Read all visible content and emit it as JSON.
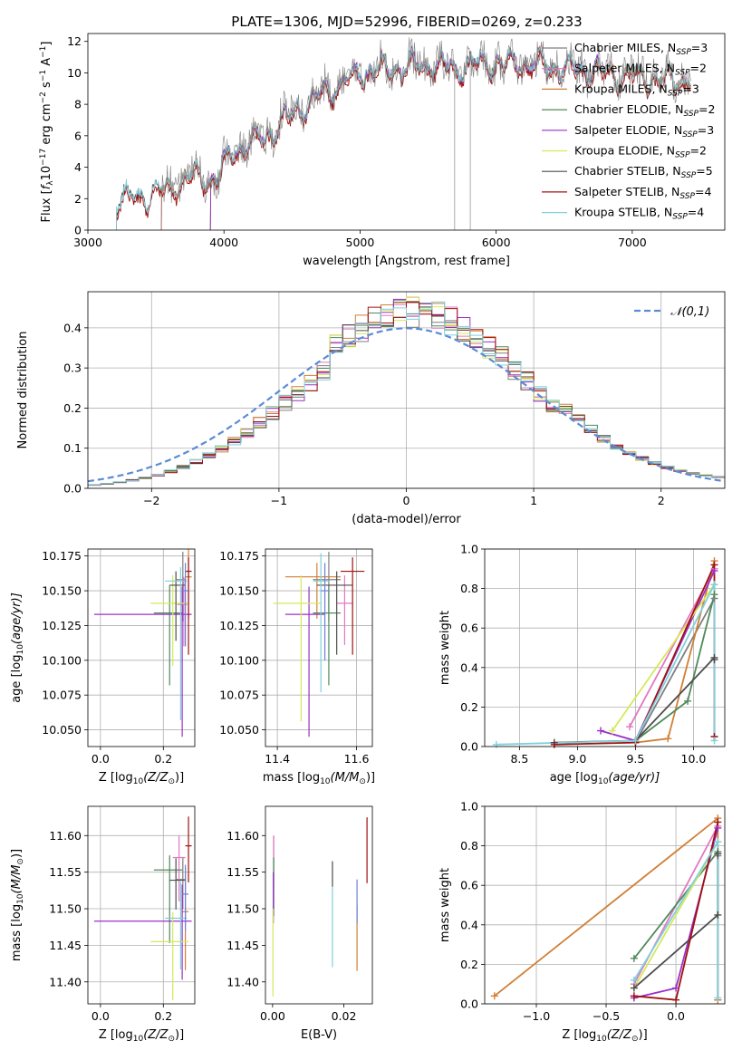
{
  "figure_title": "PLATE=1306, MJD=52996, FIBERID=0269, z=0.233",
  "colors": {
    "Chabrier MILES": "#7f7f7f",
    "Salpeter MILES": "#e377c2",
    "Kroupa MILES": "#d07f35",
    "Chabrier ELODIE": "#4f8a5b",
    "Salpeter ELODIE": "#9b30c8",
    "Kroupa ELODIE": "#d6e85a",
    "Chabrier STELIB": "#4d4d4d",
    "Salpeter STELIB": "#a01010",
    "Kroupa STELIB": "#7fd0dc",
    "normal": "#5b8bd6",
    "extra": "#6b7fd8"
  },
  "chart_data": [
    {
      "id": "spectrum",
      "type": "line",
      "title": "PLATE=1306, MJD=52996, FIBERID=0269, z=0.233",
      "xlabel": "wavelength [Angstrom, rest frame]",
      "ylabel_parts": [
        "Flux [",
        "f",
        "λ",
        "10",
        "−17",
        " erg cm",
        "−2",
        " s",
        "−1",
        " A",
        "−1",
        "]"
      ],
      "xlim": [
        3000,
        7680
      ],
      "ylim": [
        0,
        12.5
      ],
      "xticks": [
        3000,
        4000,
        5000,
        6000,
        7000
      ],
      "yticks": [
        0,
        2,
        4,
        6,
        8,
        10,
        12
      ],
      "grid": false,
      "legend_position": "right",
      "data_range": [
        3210,
        7430
      ],
      "continuum": [
        [
          3210,
          1.9
        ],
        [
          3500,
          2.4
        ],
        [
          3650,
          3.0
        ],
        [
          3800,
          3.6
        ],
        [
          3950,
          3.2
        ],
        [
          4050,
          5.0
        ],
        [
          4300,
          6.0
        ],
        [
          4500,
          7.5
        ],
        [
          4700,
          8.5
        ],
        [
          4900,
          9.6
        ],
        [
          5100,
          10.3
        ],
        [
          5300,
          10.3
        ],
        [
          5500,
          10.6
        ],
        [
          5700,
          10.4
        ],
        [
          5900,
          10.6
        ],
        [
          6100,
          10.7
        ],
        [
          6400,
          10.5
        ],
        [
          6700,
          10.2
        ],
        [
          7000,
          9.9
        ],
        [
          7200,
          9.7
        ],
        [
          7430,
          9.6
        ]
      ],
      "series": [
        {
          "name": "Chabrier MILES",
          "nssp": "3"
        },
        {
          "name": "Salpeter MILES",
          "nssp": "2"
        },
        {
          "name": "Kroupa MILES",
          "nssp": "3"
        },
        {
          "name": "Chabrier ELODIE",
          "nssp": "2"
        },
        {
          "name": "Salpeter ELODIE",
          "nssp": "3"
        },
        {
          "name": "Kroupa ELODIE",
          "nssp": "2"
        },
        {
          "name": "Chabrier STELIB",
          "nssp": "5"
        },
        {
          "name": "Salpeter STELIB",
          "nssp": "4"
        },
        {
          "name": "Kroupa STELIB",
          "nssp": "4"
        }
      ]
    },
    {
      "id": "residuals",
      "type": "line",
      "xlabel": "(data-model)/error",
      "ylabel": "Normed distribution",
      "xlim": [
        -2.5,
        2.5
      ],
      "ylim": [
        0,
        0.49
      ],
      "xticks": [
        -2,
        -1,
        0,
        1,
        2
      ],
      "yticks": [
        0.0,
        0.1,
        0.2,
        0.3,
        0.4
      ],
      "grid": true,
      "legend_position": "top-right",
      "legend": "𝒩(0,1)",
      "bin_width": 0.1,
      "hist_series": [
        "Chabrier MILES",
        "Salpeter MILES",
        "Kroupa MILES",
        "Chabrier ELODIE",
        "Salpeter ELODIE",
        "Kroupa ELODIE",
        "Chabrier STELIB",
        "Salpeter STELIB",
        "Kroupa STELIB"
      ]
    },
    {
      "id": "age-vs-Z",
      "type": "scatter",
      "xlabel_parts": [
        "Z [log",
        "10",
        "(Z/Z",
        "⊙",
        ")]"
      ],
      "ylabel_parts": [
        "age  [log",
        "10",
        "(age/yr)]"
      ],
      "xlim": [
        -0.04,
        0.3
      ],
      "ylim": [
        10.038,
        10.18
      ],
      "xticks": [
        0.0,
        0.2
      ],
      "yticks": [
        10.05,
        10.075,
        10.1,
        10.125,
        10.15,
        10.175
      ],
      "grid": true,
      "points": [
        {
          "series": "Chabrier MILES",
          "x": 0.262,
          "y": 10.158,
          "xerr": [
            0.02,
            0.01
          ],
          "yerr": [
            0.03,
            0.02
          ]
        },
        {
          "series": "Salpeter MILES",
          "x": 0.265,
          "y": 10.14,
          "xerr": [
            0.02,
            0.01
          ],
          "yerr": [
            0.03,
            0.02
          ]
        },
        {
          "series": "Kroupa MILES",
          "x": 0.28,
          "y": 10.16,
          "xerr": [
            0.01,
            0.01
          ],
          "yerr": [
            0.03,
            0.02
          ]
        },
        {
          "series": "Chabrier ELODIE",
          "x": 0.22,
          "y": 10.134,
          "xerr": [
            0.05,
            0.04
          ],
          "yerr": [
            0.052,
            0.02
          ]
        },
        {
          "series": "Salpeter ELODIE",
          "x": 0.26,
          "y": 10.133,
          "xerr": [
            0.28,
            0.03
          ],
          "yerr": [
            0.088,
            0.02
          ]
        },
        {
          "series": "Kroupa ELODIE",
          "x": 0.23,
          "y": 10.141,
          "xerr": [
            0.07,
            0.05
          ],
          "yerr": [
            0.045,
            0.02
          ]
        },
        {
          "series": "Chabrier STELIB",
          "x": 0.24,
          "y": 10.154,
          "xerr": [
            0.02,
            0.03
          ],
          "yerr": [
            0.04,
            0.01
          ]
        },
        {
          "series": "Salpeter STELIB",
          "x": 0.28,
          "y": 10.164,
          "xerr": [
            0.01,
            0.01
          ],
          "yerr": [
            0.06,
            0.01
          ]
        },
        {
          "series": "Kroupa STELIB",
          "x": 0.255,
          "y": 10.157,
          "xerr": [
            0.05,
            0.02
          ],
          "yerr": [
            0.1,
            0.01
          ]
        },
        {
          "series": "extra",
          "x": 0.27,
          "y": 10.15,
          "xerr": [
            0.01,
            0.01
          ],
          "yerr": [
            0.04,
            0.02
          ]
        }
      ]
    },
    {
      "id": "age-vs-mass",
      "type": "scatter",
      "xlabel_parts": [
        "mass [log",
        "10",
        "(M/M",
        "⊙",
        ")]"
      ],
      "ylabel": "",
      "xlim": [
        11.37,
        11.64
      ],
      "ylim": [
        10.038,
        10.18
      ],
      "xticks": [
        11.4,
        11.6
      ],
      "yticks": [
        10.05,
        10.075,
        10.1,
        10.125,
        10.15,
        10.175
      ],
      "grid": true,
      "points": [
        {
          "series": "Chabrier MILES",
          "x": 11.53,
          "y": 10.158,
          "xerr": [
            0.04,
            0.03
          ],
          "yerr": [
            0.03,
            0.02
          ]
        },
        {
          "series": "Salpeter MILES",
          "x": 11.57,
          "y": 10.141,
          "xerr": [
            0.02,
            0.02
          ],
          "yerr": [
            0.03,
            0.02
          ]
        },
        {
          "series": "Kroupa MILES",
          "x": 11.5,
          "y": 10.16,
          "xerr": [
            0.08,
            0.06
          ],
          "yerr": [
            0.03,
            0.01
          ]
        },
        {
          "series": "Chabrier ELODIE",
          "x": 11.53,
          "y": 10.134,
          "xerr": [
            0.04,
            0.03
          ],
          "yerr": [
            0.052,
            0.02
          ]
        },
        {
          "series": "Salpeter ELODIE",
          "x": 11.48,
          "y": 10.133,
          "xerr": [
            0.06,
            0.04
          ],
          "yerr": [
            0.088,
            0.02
          ]
        },
        {
          "series": "Kroupa ELODIE",
          "x": 11.46,
          "y": 10.141,
          "xerr": [
            0.07,
            0.05
          ],
          "yerr": [
            0.085,
            0.02
          ]
        },
        {
          "series": "Chabrier STELIB",
          "x": 11.55,
          "y": 10.154,
          "xerr": [
            0.05,
            0.04
          ],
          "yerr": [
            0.05,
            0.01
          ]
        },
        {
          "series": "Salpeter STELIB",
          "x": 11.59,
          "y": 10.164,
          "xerr": [
            0.03,
            0.03
          ],
          "yerr": [
            0.06,
            0.01
          ]
        },
        {
          "series": "Kroupa STELIB",
          "x": 11.51,
          "y": 10.157,
          "xerr": [
            0.02,
            0.02
          ],
          "yerr": [
            0.08,
            0.02
          ]
        },
        {
          "series": "extra",
          "x": 11.52,
          "y": 10.15,
          "xerr": [
            0.01,
            0.01
          ],
          "yerr": [
            0.05,
            0.02
          ]
        }
      ]
    },
    {
      "id": "mass-weight-vs-age",
      "type": "line",
      "xlabel_parts": [
        "age  [log",
        "10",
        "(age/yr)]"
      ],
      "ylabel": "mass weight",
      "xlim": [
        8.2,
        10.27
      ],
      "ylim": [
        0,
        1.0
      ],
      "xticks": [
        8.5,
        9.0,
        9.5,
        10.0
      ],
      "yticks": [
        0.0,
        0.2,
        0.4,
        0.6,
        0.8,
        1.0
      ],
      "grid": true,
      "series": [
        {
          "name": "Chabrier MILES",
          "x": [
            9.5,
            10.18,
            10.18
          ],
          "y": [
            0.02,
            0.75,
            0.05
          ]
        },
        {
          "name": "Salpeter MILES",
          "x": [
            9.45,
            10.18
          ],
          "y": [
            0.1,
            0.9
          ]
        },
        {
          "name": "Kroupa MILES",
          "x": [
            9.5,
            9.78,
            10.18
          ],
          "y": [
            0.02,
            0.04,
            0.94
          ]
        },
        {
          "name": "Chabrier ELODIE",
          "x": [
            9.5,
            9.95,
            10.18
          ],
          "y": [
            0.03,
            0.23,
            0.77
          ]
        },
        {
          "name": "Salpeter ELODIE",
          "x": [
            9.2,
            9.5,
            10.18
          ],
          "y": [
            0.08,
            0.03,
            0.89
          ]
        },
        {
          "name": "Kroupa ELODIE",
          "x": [
            9.3,
            10.18
          ],
          "y": [
            0.08,
            0.82
          ]
        },
        {
          "name": "Chabrier STELIB",
          "x": [
            8.8,
            9.5,
            10.18,
            10.18
          ],
          "y": [
            0.02,
            0.03,
            0.45,
            0.44
          ]
        },
        {
          "name": "Salpeter STELIB",
          "x": [
            8.8,
            9.5,
            10.18,
            10.18
          ],
          "y": [
            0.01,
            0.02,
            0.92,
            0.05
          ]
        },
        {
          "name": "Kroupa STELIB",
          "x": [
            8.3,
            9.5,
            10.18,
            10.18
          ],
          "y": [
            0.01,
            0.03,
            0.82,
            0.03
          ]
        }
      ]
    },
    {
      "id": "mass-vs-Z",
      "type": "scatter",
      "xlabel_parts": [
        "Z [log",
        "10",
        "(Z/Z",
        "⊙",
        ")]"
      ],
      "ylabel_parts": [
        "mass [log",
        "10",
        "(M/M",
        "⊙",
        ")]"
      ],
      "xlim": [
        -0.04,
        0.3
      ],
      "ylim": [
        11.37,
        11.64
      ],
      "xticks": [
        0.0,
        0.2
      ],
      "yticks": [
        11.4,
        11.45,
        11.5,
        11.55,
        11.6
      ],
      "grid": true,
      "points": [
        {
          "series": "Chabrier MILES",
          "x": 0.262,
          "y": 11.54,
          "xerr": [
            0.02,
            0.01
          ],
          "yerr": [
            0.04,
            0.03
          ]
        },
        {
          "series": "Salpeter MILES",
          "x": 0.25,
          "y": 11.57,
          "xerr": [
            0.02,
            0.02
          ],
          "yerr": [
            0.06,
            0.03
          ]
        },
        {
          "series": "Kroupa MILES",
          "x": 0.27,
          "y": 11.496,
          "xerr": [
            0.01,
            0.01
          ],
          "yerr": [
            0.08,
            0.06
          ]
        },
        {
          "series": "Chabrier ELODIE",
          "x": 0.22,
          "y": 11.553,
          "xerr": [
            0.05,
            0.04
          ],
          "yerr": [
            0.1,
            0.02
          ]
        },
        {
          "series": "Salpeter ELODIE",
          "x": 0.26,
          "y": 11.483,
          "xerr": [
            0.28,
            0.03
          ],
          "yerr": [
            0.08,
            0.05
          ]
        },
        {
          "series": "Kroupa ELODIE",
          "x": 0.23,
          "y": 11.455,
          "xerr": [
            0.07,
            0.05
          ],
          "yerr": [
            0.08,
            0.04
          ]
        },
        {
          "series": "Chabrier STELIB",
          "x": 0.24,
          "y": 11.539,
          "xerr": [
            0.02,
            0.03
          ],
          "yerr": [
            0.04,
            0.03
          ]
        },
        {
          "series": "Salpeter STELIB",
          "x": 0.28,
          "y": 11.586,
          "xerr": [
            0.01,
            0.01
          ],
          "yerr": [
            0.05,
            0.04
          ]
        },
        {
          "series": "Kroupa STELIB",
          "x": 0.255,
          "y": 11.487,
          "xerr": [
            0.05,
            0.02
          ],
          "yerr": [
            0.07,
            0.05
          ]
        },
        {
          "series": "extra",
          "x": 0.27,
          "y": 11.52,
          "xerr": [
            0.01,
            0.01
          ],
          "yerr": [
            0.05,
            0.04
          ]
        }
      ]
    },
    {
      "id": "mass-vs-ebv",
      "type": "scatter",
      "xlabel": "E(B-V)",
      "ylabel": "",
      "xlim": [
        -0.002,
        0.028
      ],
      "ylim": [
        11.37,
        11.64
      ],
      "xticks": [
        0.0,
        0.02
      ],
      "yticks": [
        11.4,
        11.45,
        11.5,
        11.55,
        11.6
      ],
      "grid": false,
      "points": [
        {
          "series": "Chabrier MILES",
          "x": 0.0003,
          "y": 11.55,
          "yerr": [
            0.05,
            0.05
          ]
        },
        {
          "series": "Salpeter MILES",
          "x": 0.0003,
          "y": 11.57,
          "yerr": [
            0.04,
            0.03
          ]
        },
        {
          "series": "Kroupa MILES",
          "x": 0.0237,
          "y": 11.47,
          "yerr": [
            0.055,
            0.035
          ]
        },
        {
          "series": "Chabrier ELODIE",
          "x": 0.0003,
          "y": 11.54,
          "yerr": [
            0.05,
            0.03
          ]
        },
        {
          "series": "Salpeter ELODIE",
          "x": 0.0002,
          "y": 11.52,
          "yerr": [
            0.04,
            0.03
          ]
        },
        {
          "series": "Kroupa ELODIE",
          "x": 0.0001,
          "y": 11.45,
          "yerr": [
            0.07,
            0.05
          ]
        },
        {
          "series": "Chabrier STELIB",
          "x": 0.0168,
          "y": 11.545,
          "yerr": [
            0.015,
            0.02
          ]
        },
        {
          "series": "Salpeter STELIB",
          "x": 0.0265,
          "y": 11.58,
          "yerr": [
            0.045,
            0.045
          ]
        },
        {
          "series": "Kroupa STELIB",
          "x": 0.0168,
          "y": 11.48,
          "yerr": [
            0.06,
            0.05
          ]
        },
        {
          "series": "extra",
          "x": 0.0237,
          "y": 11.51,
          "yerr": [
            0.03,
            0.03
          ]
        }
      ]
    },
    {
      "id": "mass-weight-vs-Z",
      "type": "line",
      "xlabel_parts": [
        "Z [log",
        "10",
        "(Z/Z",
        "⊙",
        ")]"
      ],
      "ylabel": "mass weight",
      "xlim": [
        -1.37,
        0.35
      ],
      "ylim": [
        0,
        1.0
      ],
      "xticks": [
        -1.0,
        -0.5,
        0.0
      ],
      "yticks": [
        0.0,
        0.2,
        0.4,
        0.6,
        0.8,
        1.0
      ],
      "grid": true,
      "series": [
        {
          "name": "Chabrier MILES",
          "x": [
            0.3,
            0.3
          ],
          "y": [
            0.02,
            0.75
          ]
        },
        {
          "name": "Salpeter MILES",
          "x": [
            -0.3,
            0.3
          ],
          "y": [
            0.1,
            0.9
          ]
        },
        {
          "name": "Kroupa MILES",
          "x": [
            -1.3,
            0.3,
            0.3
          ],
          "y": [
            0.04,
            0.94,
            0.02
          ]
        },
        {
          "name": "Chabrier ELODIE",
          "x": [
            -0.3,
            0.3
          ],
          "y": [
            0.23,
            0.77
          ]
        },
        {
          "name": "Salpeter ELODIE",
          "x": [
            -0.3,
            0.0,
            0.3
          ],
          "y": [
            0.03,
            0.08,
            0.89
          ]
        },
        {
          "name": "Kroupa ELODIE",
          "x": [
            -0.3,
            0.3
          ],
          "y": [
            0.08,
            0.82
          ]
        },
        {
          "name": "Chabrier STELIB",
          "x": [
            -0.3,
            0.3,
            0.3
          ],
          "y": [
            0.08,
            0.45,
            0.76
          ]
        },
        {
          "name": "Salpeter STELIB",
          "x": [
            -0.3,
            0.0,
            0.3
          ],
          "y": [
            0.04,
            0.02,
            0.92
          ]
        },
        {
          "name": "Kroupa STELIB",
          "x": [
            -0.3,
            0.3,
            0.3
          ],
          "y": [
            0.12,
            0.82,
            0.03
          ]
        }
      ]
    }
  ]
}
